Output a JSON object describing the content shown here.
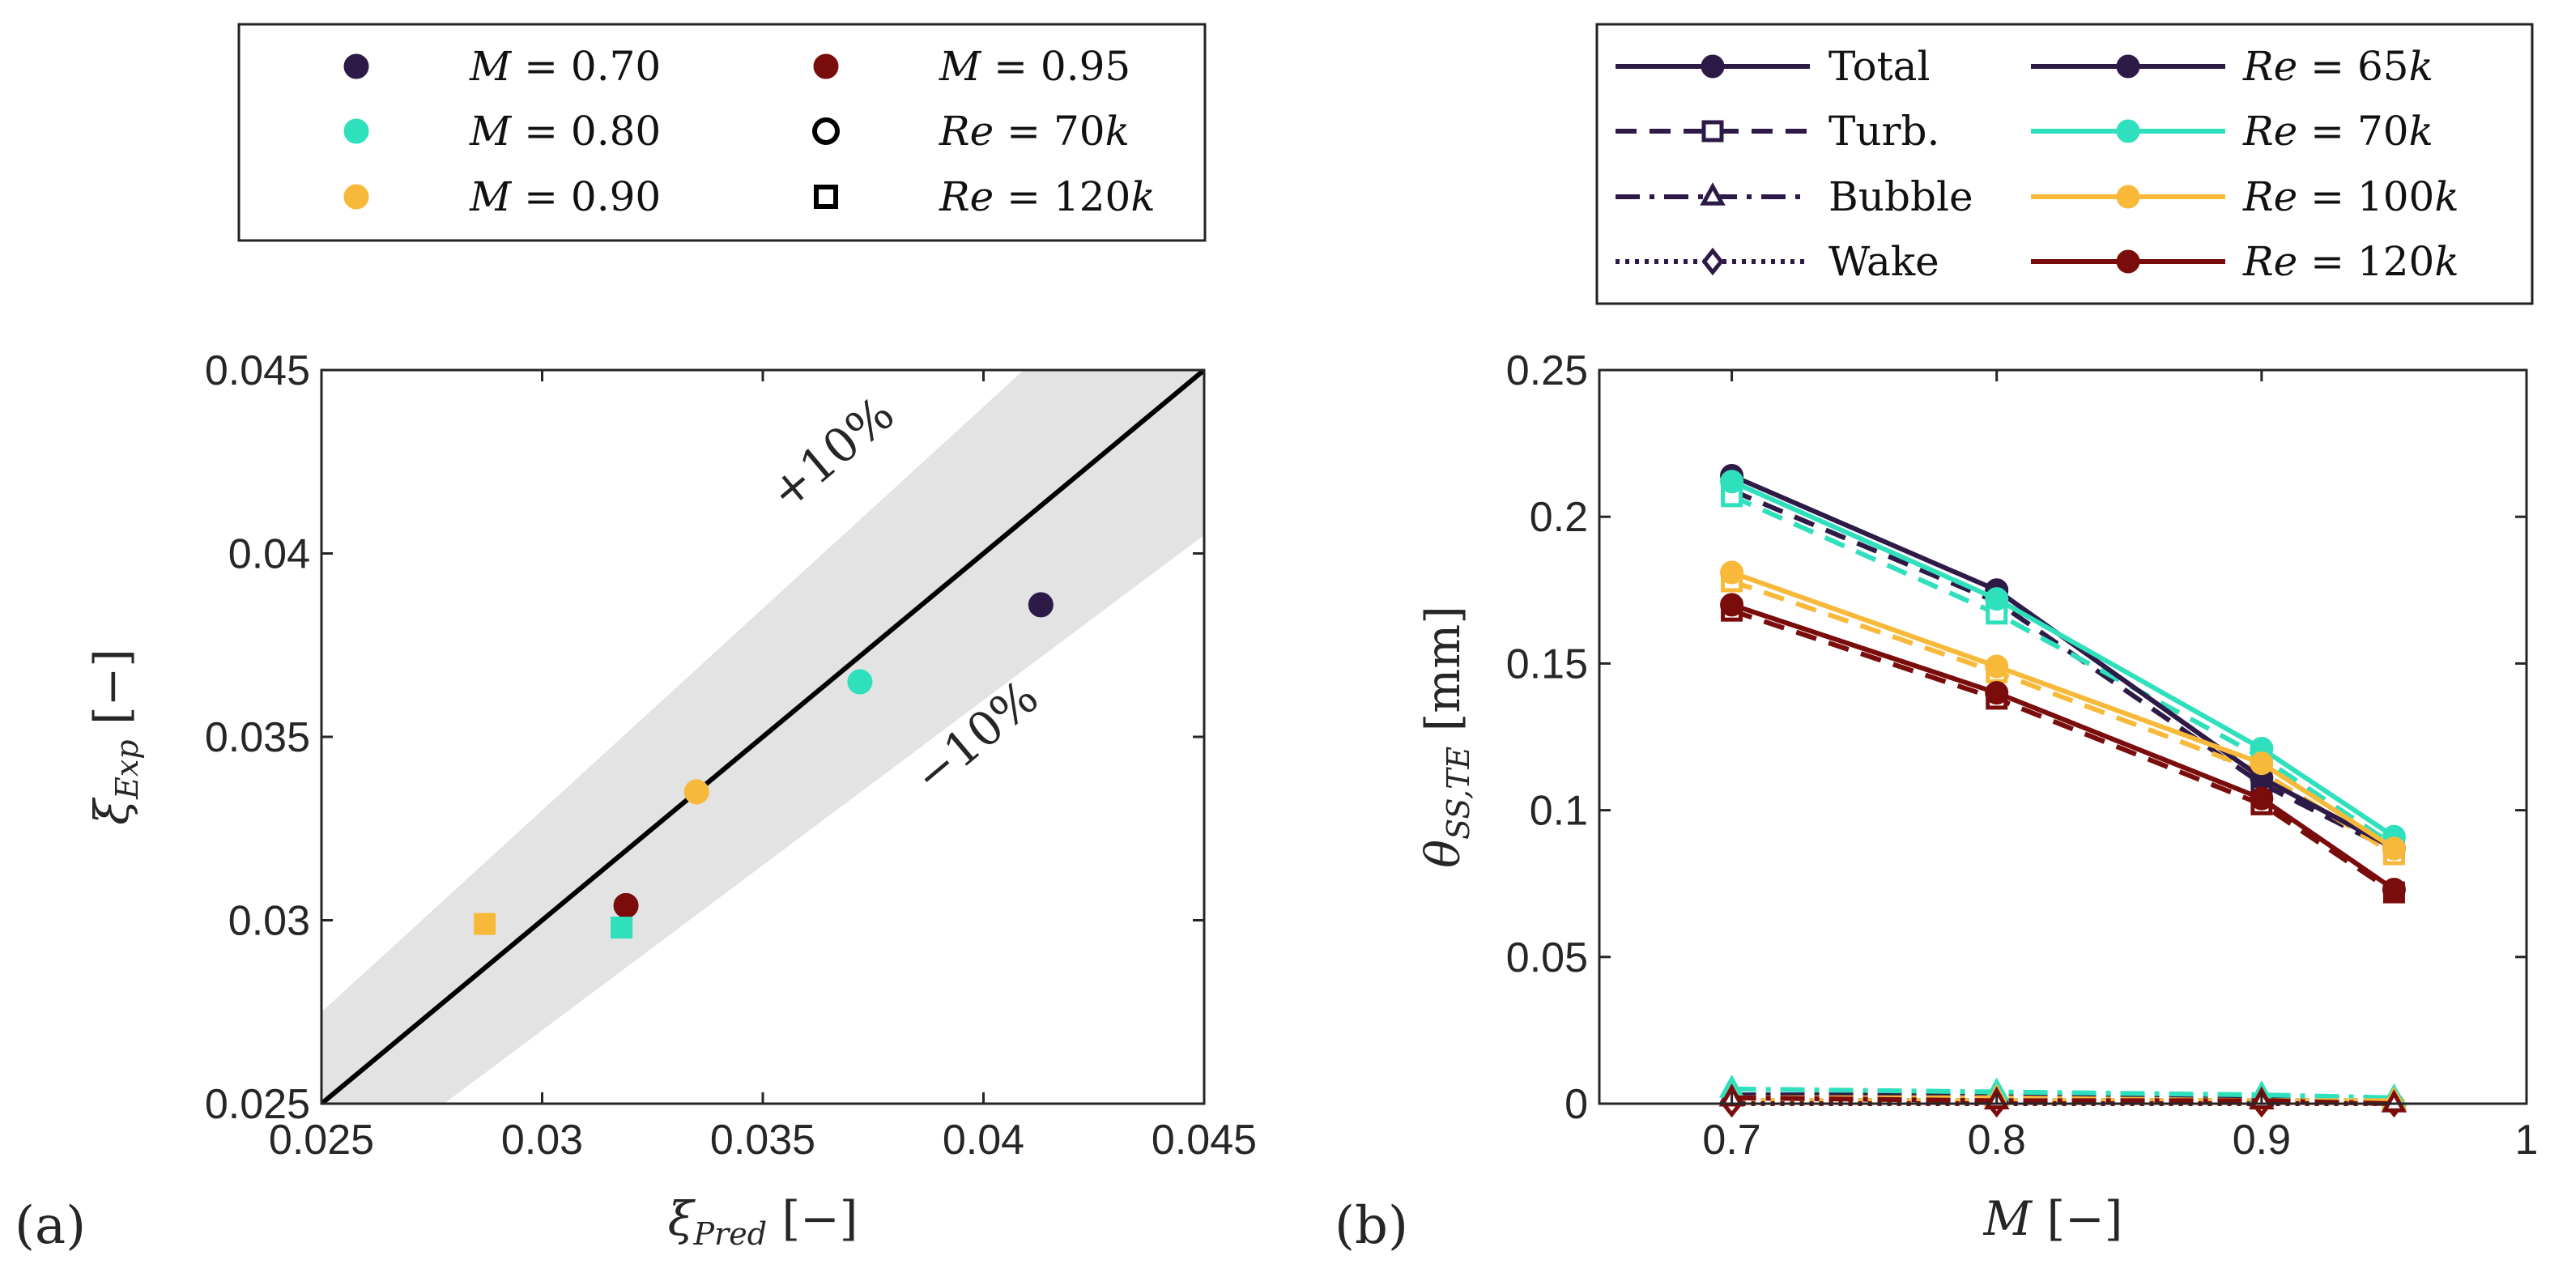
{
  "colors": {
    "M070": "#2e1a47",
    "M080": "#2fe0bd",
    "M090": "#f8b93b",
    "M095": "#7a0c0c",
    "Re65k": "#2e1a47",
    "Re70k": "#2fe0bd",
    "Re100k": "#f8b93b",
    "Re120k": "#7a0c0c",
    "band": "#e3e3e3",
    "axis": "#262626"
  },
  "chart_data": [
    {
      "type": "scatter",
      "panel_label": "(a)",
      "xlabel": {
        "main": "ξ",
        "sub": "Pred",
        "unit": "[−]"
      },
      "ylabel": {
        "main": "ξ",
        "sub": "Exp",
        "unit": "[−]"
      },
      "xlim": [
        0.025,
        0.045
      ],
      "ylim": [
        0.025,
        0.045
      ],
      "xticks": [
        "0.025",
        "0.03",
        "0.035",
        "0.04",
        "0.045"
      ],
      "yticks": [
        "0.025",
        "0.03",
        "0.035",
        "0.04",
        "0.045"
      ],
      "tick_values": [
        0.025,
        0.03,
        0.035,
        0.04,
        0.045
      ],
      "band_fraction": 0.1,
      "annotations": {
        "upper": "+10%",
        "lower": "−10%"
      },
      "legend": [
        {
          "label": "M = 0.70",
          "lhs": "M",
          "rhs": "0.70",
          "marker": "circle-filled",
          "color": "M070"
        },
        {
          "label": "M = 0.80",
          "lhs": "M",
          "rhs": "0.80",
          "marker": "circle-filled",
          "color": "M080"
        },
        {
          "label": "M = 0.90",
          "lhs": "M",
          "rhs": "0.90",
          "marker": "circle-filled",
          "color": "M090"
        },
        {
          "label": "M = 0.95",
          "lhs": "M",
          "rhs": "0.95",
          "marker": "circle-filled",
          "color": "M095"
        },
        {
          "label": "Re = 70k",
          "lhs": "Re",
          "rhs": "70k",
          "marker": "circle-open",
          "color": "black"
        },
        {
          "label": "Re = 120k",
          "lhs": "Re",
          "rhs": "120k",
          "marker": "square-open",
          "color": "black"
        }
      ],
      "points": [
        {
          "x": 0.0413,
          "y": 0.0386,
          "marker": "circle",
          "color": "M070"
        },
        {
          "x": 0.0372,
          "y": 0.0365,
          "marker": "circle",
          "color": "M080"
        },
        {
          "x": 0.0335,
          "y": 0.0335,
          "marker": "circle",
          "color": "M090"
        },
        {
          "x": 0.0319,
          "y": 0.0304,
          "marker": "circle",
          "color": "M095"
        },
        {
          "x": 0.0287,
          "y": 0.0299,
          "marker": "square",
          "color": "M090"
        },
        {
          "x": 0.0318,
          "y": 0.0298,
          "marker": "square",
          "color": "M080"
        }
      ]
    },
    {
      "type": "line",
      "panel_label": "(b)",
      "xlabel": {
        "main": "M",
        "sub": "",
        "unit": "[−]"
      },
      "ylabel": {
        "main": "θ",
        "sub": "SS,TE",
        "unit": "[mm]"
      },
      "xlim": [
        0.65,
        1.0
      ],
      "ylim": [
        0,
        0.25
      ],
      "xticks": [
        "0.7",
        "0.8",
        "0.9",
        "1"
      ],
      "xtick_values": [
        0.7,
        0.8,
        0.9,
        1.0
      ],
      "yticks": [
        "0",
        "0.05",
        "0.1",
        "0.15",
        "0.2",
        "0.25"
      ],
      "ytick_values": [
        0,
        0.05,
        0.1,
        0.15,
        0.2,
        0.25
      ],
      "x": [
        0.7,
        0.8,
        0.9,
        0.95
      ],
      "legend_styles": [
        {
          "label": "Total",
          "dash": "solid",
          "marker": "circle-filled"
        },
        {
          "label": "Turb.",
          "dash": "dashed",
          "marker": "square-open"
        },
        {
          "label": "Bubble",
          "dash": "dashdot",
          "marker": "triangle-open"
        },
        {
          "label": "Wake",
          "dash": "dotted",
          "marker": "diamond-open"
        }
      ],
      "legend_series": [
        {
          "label": "Re = 65k",
          "lhs": "Re",
          "rhs": "65k",
          "color": "Re65k"
        },
        {
          "label": "Re = 70k",
          "lhs": "Re",
          "rhs": "70k",
          "color": "Re70k"
        },
        {
          "label": "Re = 100k",
          "lhs": "Re",
          "rhs": "100k",
          "color": "Re100k"
        },
        {
          "label": "Re = 120k",
          "lhs": "Re",
          "rhs": "120k",
          "color": "Re120k"
        }
      ],
      "series": [
        {
          "name": "Re = 65k",
          "color": "Re65k",
          "total": [
            0.214,
            0.175,
            0.111,
            0.087
          ],
          "turb": [
            0.209,
            0.171,
            0.109,
            0.086
          ],
          "bubble": [
            0.003,
            0.003,
            0.002,
            0.001
          ],
          "wake": [
            0.001,
            0.001,
            0.001,
            0.001
          ]
        },
        {
          "name": "Re = 70k",
          "color": "Re70k",
          "total": [
            0.212,
            0.172,
            0.121,
            0.091
          ],
          "turb": [
            0.207,
            0.167,
            0.118,
            0.088
          ],
          "bubble": [
            0.005,
            0.004,
            0.003,
            0.002
          ],
          "wake": [
            0.001,
            0.001,
            0.001,
            0.001
          ]
        },
        {
          "name": "Re = 100k",
          "color": "Re100k",
          "total": [
            0.181,
            0.149,
            0.116,
            0.087
          ],
          "turb": [
            0.178,
            0.147,
            0.113,
            0.085
          ],
          "bubble": [
            0.002,
            0.002,
            0.001,
            0.001
          ],
          "wake": [
            0.001,
            0.001,
            0.001,
            0.001
          ]
        },
        {
          "name": "Re = 120k",
          "color": "Re120k",
          "total": [
            0.17,
            0.14,
            0.104,
            0.073
          ],
          "turb": [
            0.168,
            0.138,
            0.102,
            0.072
          ],
          "bubble": [
            0.002,
            0.001,
            0.001,
            0.0
          ],
          "wake": [
            0.0,
            0.0,
            0.0,
            0.0
          ]
        }
      ]
    }
  ]
}
